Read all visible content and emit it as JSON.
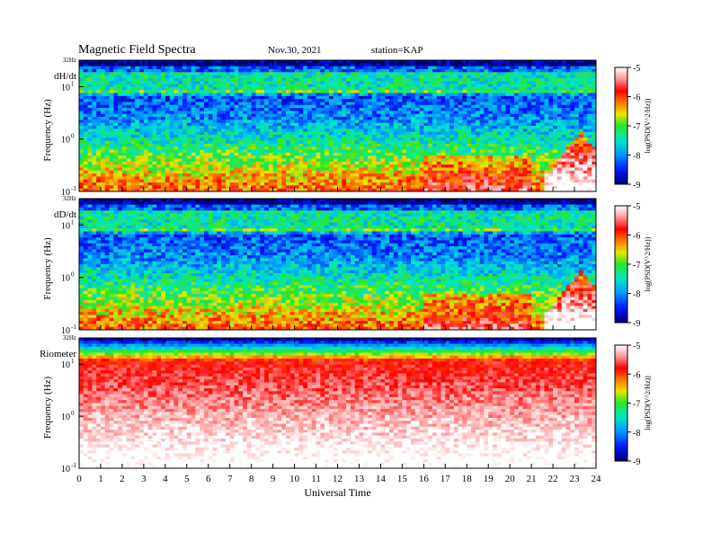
{
  "header": {
    "title": "Magnetic  Field  Spectra",
    "date": "Nov.30, 2021",
    "station": "station=KAP"
  },
  "chart_data": [
    {
      "type": "heatmap",
      "panel_label": "dH/dt",
      "ylabel": "Frequency  (Hz)",
      "y_scale": "log",
      "ylim_hz": [
        0.1,
        32
      ],
      "y_tick_labels": [
        "32Hz",
        "10",
        "10",
        "10"
      ],
      "y_tick_exponents": [
        "",
        "1",
        "0",
        "-1"
      ],
      "xlim": [
        0,
        24
      ],
      "colorbar": {
        "label": "log(PSD(V^2/Hz))",
        "ticks": [
          -5,
          -6,
          -7,
          -8,
          -9
        ],
        "range": [
          -9,
          -5
        ]
      }
    },
    {
      "type": "heatmap",
      "panel_label": "dD/dt",
      "ylabel": "Frequency  (Hz)",
      "y_scale": "log",
      "ylim_hz": [
        0.1,
        32
      ],
      "y_tick_labels": [
        "32Hz",
        "10",
        "10",
        "10"
      ],
      "y_tick_exponents": [
        "",
        "1",
        "0",
        "-1"
      ],
      "xlim": [
        0,
        24
      ],
      "colorbar": {
        "label": "log(PSD(V^2/Hz))",
        "ticks": [
          -5,
          -6,
          -7,
          -8,
          -9
        ],
        "range": [
          -9,
          -5
        ]
      }
    },
    {
      "type": "heatmap",
      "panel_label": "Riometer",
      "ylabel": "Frequency  (Hz)",
      "y_scale": "log",
      "ylim_hz": [
        0.1,
        32
      ],
      "y_tick_labels": [
        "32Hz",
        "10",
        "10",
        "10"
      ],
      "y_tick_exponents": [
        "",
        "1",
        "0",
        "-1"
      ],
      "xlim": [
        0,
        24
      ],
      "x_ticks": [
        0,
        1,
        2,
        3,
        4,
        5,
        6,
        7,
        8,
        9,
        10,
        11,
        12,
        13,
        14,
        15,
        16,
        17,
        18,
        19,
        20,
        21,
        22,
        23,
        24
      ],
      "xlabel": "Universal  Time",
      "colorbar": {
        "label": "log(PSD(V^2/Hz))",
        "ticks": [
          -5,
          -6,
          -7,
          -8,
          -9
        ],
        "range": [
          -9,
          -5
        ]
      }
    }
  ]
}
